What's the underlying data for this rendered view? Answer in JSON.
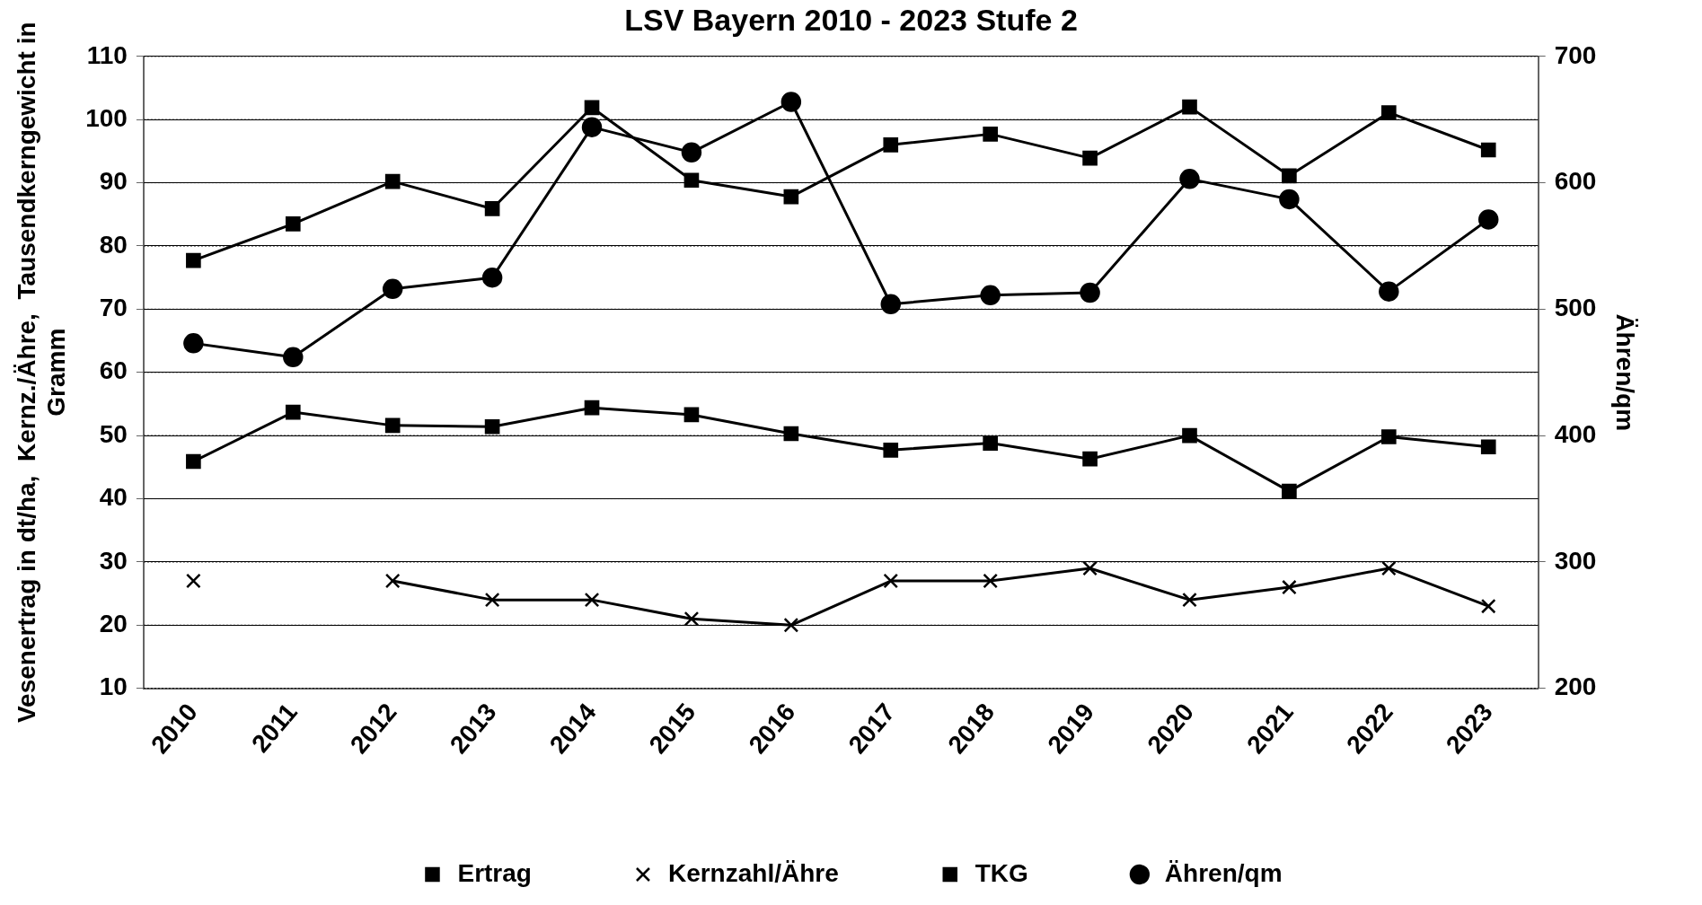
{
  "chart_data": {
    "type": "line",
    "title": "LSV Bayern 2010 - 2023 Stufe 2",
    "ylabel": "Vesenertrag in dt/ha,  Kernz./Ähre,  Tausendkerngewicht in\nGramm",
    "y2label": "Ähren/qm",
    "categories": [
      "2010",
      "2011",
      "2012",
      "2013",
      "2014",
      "2015",
      "2016",
      "2017",
      "2018",
      "2019",
      "2020",
      "2021",
      "2022",
      "2023"
    ],
    "ylim": [
      10,
      110
    ],
    "yticks": [
      10,
      20,
      30,
      40,
      50,
      60,
      70,
      80,
      90,
      100,
      110
    ],
    "y2lim": [
      200,
      700
    ],
    "y2ticks": [
      200,
      300,
      400,
      500,
      600,
      700
    ],
    "grid": "y",
    "legend": "bottom",
    "line_style": "solid",
    "series": [
      {
        "name": "Ertrag",
        "color": "#000000",
        "marker": "square",
        "values": [
          77.7,
          83.5,
          90.2,
          85.9,
          101.9,
          90.4,
          87.8,
          96,
          97.7,
          93.9,
          102,
          91.1,
          101.1,
          95.2
        ]
      },
      {
        "name": "Kernzahl/Ähre",
        "color": "#000000",
        "marker": "cross",
        "values": [
          27,
          null,
          27,
          24,
          24,
          21,
          20,
          27,
          27,
          29,
          24,
          26,
          29,
          23
        ]
      },
      {
        "name": "TKG",
        "color": "#000000",
        "marker": "square",
        "values": [
          45.9,
          53.7,
          51.6,
          51.4,
          54.4,
          53.3,
          50.3,
          47.7,
          48.8,
          46.3,
          50,
          41.2,
          49.8,
          48.2
        ]
      },
      {
        "name": "Ähren/qm",
        "color": "#000000",
        "marker": "circle",
        "axis": "y2",
        "values": [
          473,
          462,
          516,
          525,
          644,
          624,
          664,
          504,
          511,
          513,
          603,
          587,
          514,
          571
        ]
      }
    ]
  }
}
